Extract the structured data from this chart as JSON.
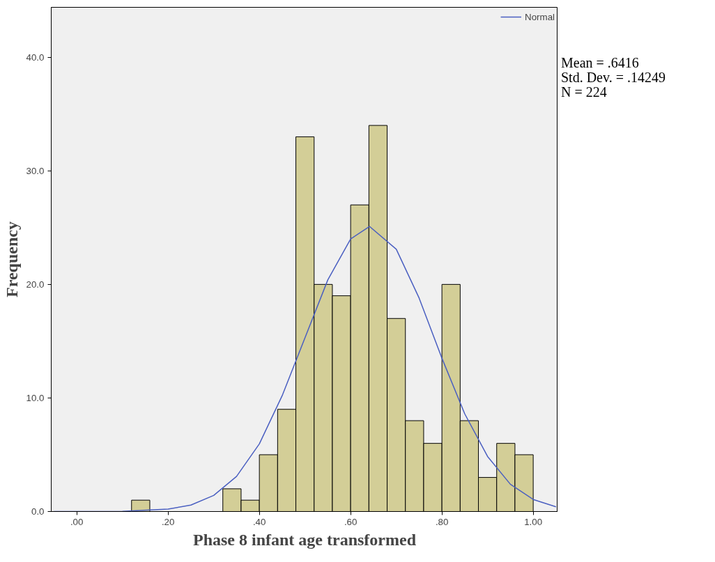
{
  "chart_data": {
    "type": "histogram",
    "xlabel": "Phase 8 infant age transformed",
    "ylabel": "Frequency",
    "bins": [
      0.12,
      0.16,
      0.2,
      0.24,
      0.28,
      0.32,
      0.36,
      0.4,
      0.44,
      0.48,
      0.52,
      0.56,
      0.6,
      0.64,
      0.68,
      0.72,
      0.76,
      0.8,
      0.84,
      0.88,
      0.92,
      0.96,
      1.0
    ],
    "values": [
      1,
      0,
      0,
      0,
      0,
      2,
      1,
      5,
      9,
      33,
      20,
      19,
      27,
      34,
      17,
      8,
      6,
      20,
      8,
      3,
      6,
      5
    ],
    "color": "#d3ce97",
    "series": [
      {
        "type": "line",
        "name": "Normal",
        "color": "#4a5fc1",
        "x": [
          -0.05,
          0.0,
          0.1,
          0.2,
          0.25,
          0.3,
          0.35,
          0.4,
          0.45,
          0.5,
          0.55,
          0.6,
          0.6416,
          0.7,
          0.75,
          0.8,
          0.85,
          0.9,
          0.95,
          1.0,
          1.05
        ],
        "values": [
          0,
          0,
          0.02,
          0.21,
          0.57,
          1.42,
          3.09,
          5.96,
          10.2,
          15.3,
          20.4,
          24.0,
          25.1,
          23.1,
          18.8,
          13.5,
          8.6,
          4.85,
          2.4,
          1.06,
          0.41
        ]
      }
    ],
    "xlim": [
      -0.056,
      1.054
    ],
    "ylim": [
      0,
      44.4
    ],
    "xticks": [
      {
        "value": 0,
        "label": ".00"
      },
      {
        "value": 0.2,
        "label": ".20"
      },
      {
        "value": 0.4,
        "label": ".40"
      },
      {
        "value": 0.6,
        "label": ".60"
      },
      {
        "value": 0.8,
        "label": ".80"
      },
      {
        "value": 1.0,
        "label": "1.00"
      }
    ],
    "yticks": [
      {
        "value": 0,
        "label": "0.0"
      },
      {
        "value": 10,
        "label": "10.0"
      },
      {
        "value": 20,
        "label": "20.0"
      },
      {
        "value": 30,
        "label": "30.0"
      },
      {
        "value": 40,
        "label": "40.0"
      }
    ],
    "legend": "top right",
    "grid": false,
    "marker": "none",
    "line_style": "solid",
    "annotations": [
      "Mean = .6416",
      "Std. Dev. = .14249",
      "N = 224"
    ]
  }
}
